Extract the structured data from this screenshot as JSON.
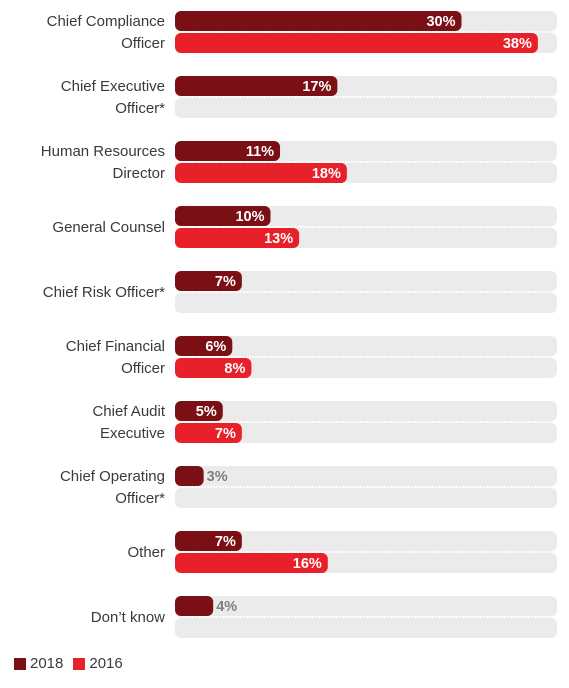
{
  "chart_data": {
    "type": "bar",
    "orientation": "horizontal",
    "categories": [
      [
        "Chief Compliance",
        "Officer"
      ],
      [
        "Chief Executive",
        "Officer*"
      ],
      [
        "Human Resources",
        "Director"
      ],
      [
        "General Counsel"
      ],
      [
        "Chief Risk Officer*"
      ],
      [
        "Chief Financial",
        "Officer"
      ],
      [
        "Chief Audit",
        "Executive"
      ],
      [
        "Chief Operating",
        "Officer*"
      ],
      [
        "Other"
      ],
      [
        "Don’t know"
      ]
    ],
    "series": [
      {
        "name": "2018",
        "color": "#7a1015",
        "values": [
          30,
          17,
          11,
          10,
          7,
          6,
          5,
          3,
          7,
          4
        ],
        "labels": [
          "30%",
          "17%",
          "11%",
          "10%",
          "7%",
          "6%",
          "5%",
          "3%",
          "7%",
          "4%"
        ]
      },
      {
        "name": "2016",
        "color": "#e8202a",
        "values": [
          38,
          null,
          18,
          13,
          null,
          8,
          7,
          null,
          16,
          null
        ],
        "labels": [
          "38%",
          "",
          "18%",
          "13%",
          "",
          "8%",
          "7%",
          "",
          "16%",
          ""
        ]
      }
    ],
    "xlim": [
      0,
      40
    ],
    "track_color": "#ebebeb",
    "legend_position": "bottom-left",
    "grid": false
  }
}
